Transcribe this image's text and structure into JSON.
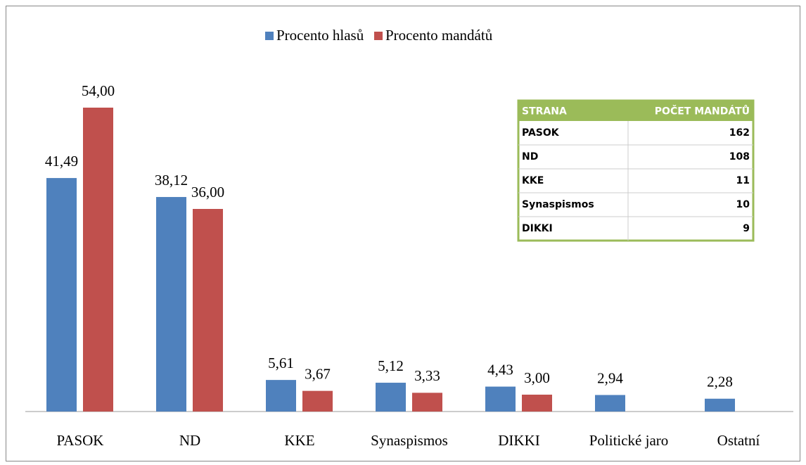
{
  "chart_data": {
    "type": "bar",
    "categories": [
      "PASOK",
      "ND",
      "KKE",
      "Synaspismos",
      "DIKKI",
      "Politické jaro",
      "Ostatní"
    ],
    "series": [
      {
        "name": "Procento hlasů",
        "color": "#4f81bd",
        "values": [
          41.49,
          38.12,
          5.61,
          5.12,
          4.43,
          2.94,
          2.28
        ],
        "value_labels": [
          "41,49",
          "38,12",
          "5,61",
          "5,12",
          "4,43",
          "2,94",
          "2,28"
        ]
      },
      {
        "name": "Procento mandátů",
        "color": "#c0504d",
        "values": [
          54.0,
          36.0,
          3.67,
          3.33,
          3.0,
          null,
          null
        ],
        "value_labels": [
          "54,00",
          "36,00",
          "3,67",
          "3,33",
          "3,00",
          null,
          null
        ]
      }
    ],
    "ylim": [
      0,
      60
    ],
    "legend": "top",
    "table": {
      "header": [
        "STRANA",
        "POČET MANDÁTŮ"
      ],
      "color": "#9bbb59",
      "rows": [
        [
          "PASOK",
          162
        ],
        [
          "ND",
          108
        ],
        [
          "KKE",
          11
        ],
        [
          "Synaspismos",
          10
        ],
        [
          "DIKKI",
          9
        ]
      ]
    }
  }
}
